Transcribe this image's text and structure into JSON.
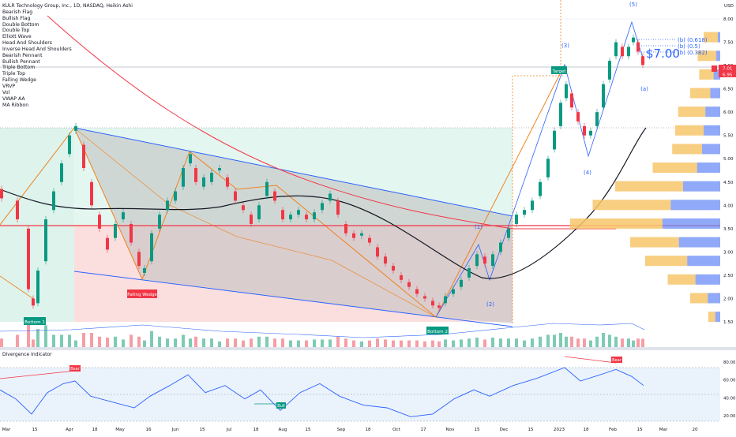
{
  "header": {
    "title": "KULR Technology Group, Inc., 1D, NASDAQ, Heikin Ashi"
  },
  "legend_items": [
    "Bearish Flag",
    "Bullish Flag",
    "Double Bottom",
    "Double Top",
    "Elliott Wave",
    "Head And Shoulders",
    "Inverse Head And Shoulders",
    "Bearish Pennant",
    "Bullish Pennant",
    "Triple Bottom",
    "Triple Top",
    "Falling Wedge",
    "VRVP",
    "Vol",
    "VWAP AA",
    "MA Ribbon"
  ],
  "price_axis": {
    "currency": "USD",
    "ticks": [
      "8.00",
      "7.50",
      "7.00",
      "6.50",
      "6.00",
      "5.50",
      "5.00",
      "4.50",
      "4.00",
      "3.50",
      "3.00",
      "2.50",
      "2.00",
      "1.50"
    ],
    "last_price": "7.01",
    "last_price_sub": "6.95",
    "badge_icon": "flag-icon",
    "badge_color": "#f23645"
  },
  "time_axis": {
    "ticks": [
      "Mar",
      "15",
      "Apr",
      "18",
      "May",
      "16",
      "Jun",
      "15",
      "Jul",
      "18",
      "Aug",
      "15",
      "Sep",
      "18",
      "Oct",
      "17",
      "Nov",
      "15",
      "Dec",
      "15",
      "2023",
      "18",
      "Feb",
      "15",
      "Mar",
      "20"
    ]
  },
  "annotations": {
    "bottom1": "Bottom 1",
    "bottom2": "Bottom 2",
    "falling_wedge": "Falling Wedge",
    "target": "Target",
    "big_price": "$7.00",
    "fib_618": "(b) (0.618)",
    "fib_5": "(b) (0.5)",
    "fib_382": "(b) (0.382)",
    "wave_1": "(1)",
    "wave_2": "(2)",
    "wave_3": "(3)",
    "wave_4": "(4)",
    "wave_5": "(5)",
    "wave_a": "(a)"
  },
  "indicator": {
    "title": "Divergence Indicator",
    "ticks": [
      "80.00",
      "60.00",
      "40.00",
      "20.00"
    ],
    "bear": "Bear",
    "bull": "Bull"
  },
  "chart_data": {
    "type": "candlestick",
    "title": "KULR Technology Group, Inc., 1D, NASDAQ, Heikin Ashi",
    "ylim": [
      1.3,
      8.3
    ],
    "price_series": [
      {
        "x": 0,
        "o": 4.35,
        "c": 4.15
      },
      {
        "x": 20,
        "o": 4.1,
        "c": 3.7
      },
      {
        "x": 34,
        "o": 3.5,
        "c": 2.2
      },
      {
        "x": 40,
        "o": 2.0,
        "c": 1.85
      },
      {
        "x": 46,
        "o": 1.9,
        "c": 2.6
      },
      {
        "x": 56,
        "o": 2.8,
        "c": 3.7
      },
      {
        "x": 66,
        "o": 3.9,
        "c": 4.3
      },
      {
        "x": 76,
        "o": 4.5,
        "c": 4.9
      },
      {
        "x": 86,
        "o": 5.1,
        "c": 5.5
      },
      {
        "x": 94,
        "o": 5.6,
        "c": 5.7
      },
      {
        "x": 104,
        "o": 5.3,
        "c": 4.8
      },
      {
        "x": 114,
        "o": 4.5,
        "c": 4.0
      },
      {
        "x": 124,
        "o": 3.8,
        "c": 3.5
      },
      {
        "x": 134,
        "o": 3.3,
        "c": 3.05
      },
      {
        "x": 144,
        "o": 3.3,
        "c": 3.6
      },
      {
        "x": 154,
        "o": 3.7,
        "c": 3.85
      },
      {
        "x": 164,
        "o": 3.6,
        "c": 3.2
      },
      {
        "x": 174,
        "o": 3.0,
        "c": 2.7
      },
      {
        "x": 181,
        "o": 2.55,
        "c": 2.65
      },
      {
        "x": 190,
        "o": 2.8,
        "c": 3.4
      },
      {
        "x": 200,
        "o": 3.5,
        "c": 3.8
      },
      {
        "x": 210,
        "o": 3.9,
        "c": 4.1
      },
      {
        "x": 220,
        "o": 4.1,
        "c": 4.3
      },
      {
        "x": 230,
        "o": 4.4,
        "c": 4.8
      },
      {
        "x": 239,
        "o": 4.9,
        "c": 5.1
      },
      {
        "x": 246,
        "o": 4.8,
        "c": 4.5
      },
      {
        "x": 256,
        "o": 4.4,
        "c": 4.6
      },
      {
        "x": 266,
        "o": 4.5,
        "c": 4.7
      },
      {
        "x": 276,
        "o": 4.75,
        "c": 4.8
      },
      {
        "x": 286,
        "o": 4.6,
        "c": 4.4
      },
      {
        "x": 296,
        "o": 4.3,
        "c": 4.1
      },
      {
        "x": 306,
        "o": 4.0,
        "c": 3.9
      },
      {
        "x": 316,
        "o": 3.8,
        "c": 3.6
      },
      {
        "x": 326,
        "o": 3.7,
        "c": 4.0
      },
      {
        "x": 336,
        "o": 4.2,
        "c": 4.5
      },
      {
        "x": 346,
        "o": 4.3,
        "c": 4.1
      },
      {
        "x": 356,
        "o": 3.9,
        "c": 3.7
      },
      {
        "x": 366,
        "o": 3.7,
        "c": 3.8
      },
      {
        "x": 376,
        "o": 3.8,
        "c": 3.9
      },
      {
        "x": 386,
        "o": 3.8,
        "c": 3.7
      },
      {
        "x": 396,
        "o": 3.7,
        "c": 3.85
      },
      {
        "x": 406,
        "o": 3.9,
        "c": 4.05
      },
      {
        "x": 416,
        "o": 4.1,
        "c": 4.25
      },
      {
        "x": 426,
        "o": 4.1,
        "c": 3.8
      },
      {
        "x": 436,
        "o": 3.6,
        "c": 3.4
      },
      {
        "x": 446,
        "o": 3.4,
        "c": 3.3
      },
      {
        "x": 456,
        "o": 3.35,
        "c": 3.4
      },
      {
        "x": 466,
        "o": 3.3,
        "c": 3.2
      },
      {
        "x": 476,
        "o": 3.1,
        "c": 2.9
      },
      {
        "x": 486,
        "o": 2.9,
        "c": 2.75
      },
      {
        "x": 496,
        "o": 2.7,
        "c": 2.6
      },
      {
        "x": 506,
        "o": 2.5,
        "c": 2.4
      },
      {
        "x": 516,
        "o": 2.35,
        "c": 2.25
      },
      {
        "x": 526,
        "o": 2.2,
        "c": 2.1
      },
      {
        "x": 536,
        "o": 2.05,
        "c": 2.0
      },
      {
        "x": 546,
        "o": 1.95,
        "c": 1.85
      },
      {
        "x": 554,
        "o": 1.85,
        "c": 1.8
      },
      {
        "x": 562,
        "o": 1.9,
        "c": 2.05
      },
      {
        "x": 572,
        "o": 2.1,
        "c": 2.2
      },
      {
        "x": 582,
        "o": 2.25,
        "c": 2.4
      },
      {
        "x": 592,
        "o": 2.45,
        "c": 2.65
      },
      {
        "x": 602,
        "o": 2.7,
        "c": 2.95
      },
      {
        "x": 612,
        "o": 2.9,
        "c": 2.75
      },
      {
        "x": 622,
        "o": 2.7,
        "c": 2.95
      },
      {
        "x": 632,
        "o": 3.0,
        "c": 3.2
      },
      {
        "x": 642,
        "o": 3.3,
        "c": 3.5
      },
      {
        "x": 652,
        "o": 3.6,
        "c": 3.8
      },
      {
        "x": 662,
        "o": 3.8,
        "c": 3.9
      },
      {
        "x": 672,
        "o": 3.9,
        "c": 4.1
      },
      {
        "x": 682,
        "o": 4.2,
        "c": 4.5
      },
      {
        "x": 692,
        "o": 4.6,
        "c": 5.0
      },
      {
        "x": 700,
        "o": 5.2,
        "c": 5.6
      },
      {
        "x": 708,
        "o": 5.7,
        "c": 6.2
      },
      {
        "x": 715,
        "o": 6.3,
        "c": 6.6
      },
      {
        "x": 722,
        "o": 6.4,
        "c": 6.1
      },
      {
        "x": 730,
        "o": 6.0,
        "c": 5.8
      },
      {
        "x": 738,
        "o": 5.7,
        "c": 5.5
      },
      {
        "x": 746,
        "o": 5.5,
        "c": 5.6
      },
      {
        "x": 754,
        "o": 5.7,
        "c": 6.0
      },
      {
        "x": 762,
        "o": 6.1,
        "c": 6.6
      },
      {
        "x": 770,
        "o": 6.7,
        "c": 7.1
      },
      {
        "x": 778,
        "o": 7.2,
        "c": 7.5
      },
      {
        "x": 786,
        "o": 7.4,
        "c": 7.2
      },
      {
        "x": 794,
        "o": 7.2,
        "c": 7.4
      },
      {
        "x": 800,
        "o": 7.5,
        "c": 7.6
      },
      {
        "x": 806,
        "o": 7.5,
        "c": 7.3
      },
      {
        "x": 812,
        "o": 7.2,
        "c": 7.01
      }
    ],
    "volume_profile": [
      {
        "price": 7.6,
        "left": 0.11,
        "right": 0.03
      },
      {
        "price": 7.2,
        "left": 0.15,
        "right": 0.05
      },
      {
        "price": 6.8,
        "left": 0.14,
        "right": 0.08
      },
      {
        "price": 6.4,
        "left": 0.2,
        "right": 0.12
      },
      {
        "price": 6.0,
        "left": 0.28,
        "right": 0.18
      },
      {
        "price": 5.6,
        "left": 0.3,
        "right": 0.2
      },
      {
        "price": 5.2,
        "left": 0.32,
        "right": 0.22
      },
      {
        "price": 4.8,
        "left": 0.45,
        "right": 0.28
      },
      {
        "price": 4.4,
        "left": 0.7,
        "right": 0.45
      },
      {
        "price": 4.0,
        "left": 0.85,
        "right": 0.6
      },
      {
        "price": 3.6,
        "left": 1.0,
        "right": 0.7
      },
      {
        "price": 3.2,
        "left": 0.6,
        "right": 0.5
      },
      {
        "price": 2.8,
        "left": 0.5,
        "right": 0.4
      },
      {
        "price": 2.4,
        "left": 0.35,
        "right": 0.3
      },
      {
        "price": 2.0,
        "left": 0.2,
        "right": 0.15
      },
      {
        "price": 1.6,
        "left": 0.08,
        "right": 0.06
      }
    ],
    "series_notes": [
      "MA Ribbon",
      "VWAP AA"
    ],
    "indicator_series": [
      {
        "x": 0,
        "v": 55
      },
      {
        "x": 20,
        "v": 45
      },
      {
        "x": 40,
        "v": 28
      },
      {
        "x": 60,
        "v": 52
      },
      {
        "x": 80,
        "v": 62
      },
      {
        "x": 95,
        "v": 65
      },
      {
        "x": 115,
        "v": 48
      },
      {
        "x": 140,
        "v": 42
      },
      {
        "x": 170,
        "v": 35
      },
      {
        "x": 190,
        "v": 48
      },
      {
        "x": 215,
        "v": 60
      },
      {
        "x": 238,
        "v": 72
      },
      {
        "x": 260,
        "v": 52
      },
      {
        "x": 285,
        "v": 60
      },
      {
        "x": 310,
        "v": 45
      },
      {
        "x": 330,
        "v": 55
      },
      {
        "x": 355,
        "v": 32
      },
      {
        "x": 380,
        "v": 52
      },
      {
        "x": 405,
        "v": 62
      },
      {
        "x": 430,
        "v": 48
      },
      {
        "x": 460,
        "v": 38
      },
      {
        "x": 490,
        "v": 35
      },
      {
        "x": 520,
        "v": 25
      },
      {
        "x": 548,
        "v": 28
      },
      {
        "x": 575,
        "v": 45
      },
      {
        "x": 600,
        "v": 55
      },
      {
        "x": 620,
        "v": 48
      },
      {
        "x": 650,
        "v": 60
      },
      {
        "x": 680,
        "v": 68
      },
      {
        "x": 715,
        "v": 80
      },
      {
        "x": 735,
        "v": 65
      },
      {
        "x": 760,
        "v": 72
      },
      {
        "x": 780,
        "v": 78
      },
      {
        "x": 800,
        "v": 70
      },
      {
        "x": 815,
        "v": 60
      }
    ]
  }
}
